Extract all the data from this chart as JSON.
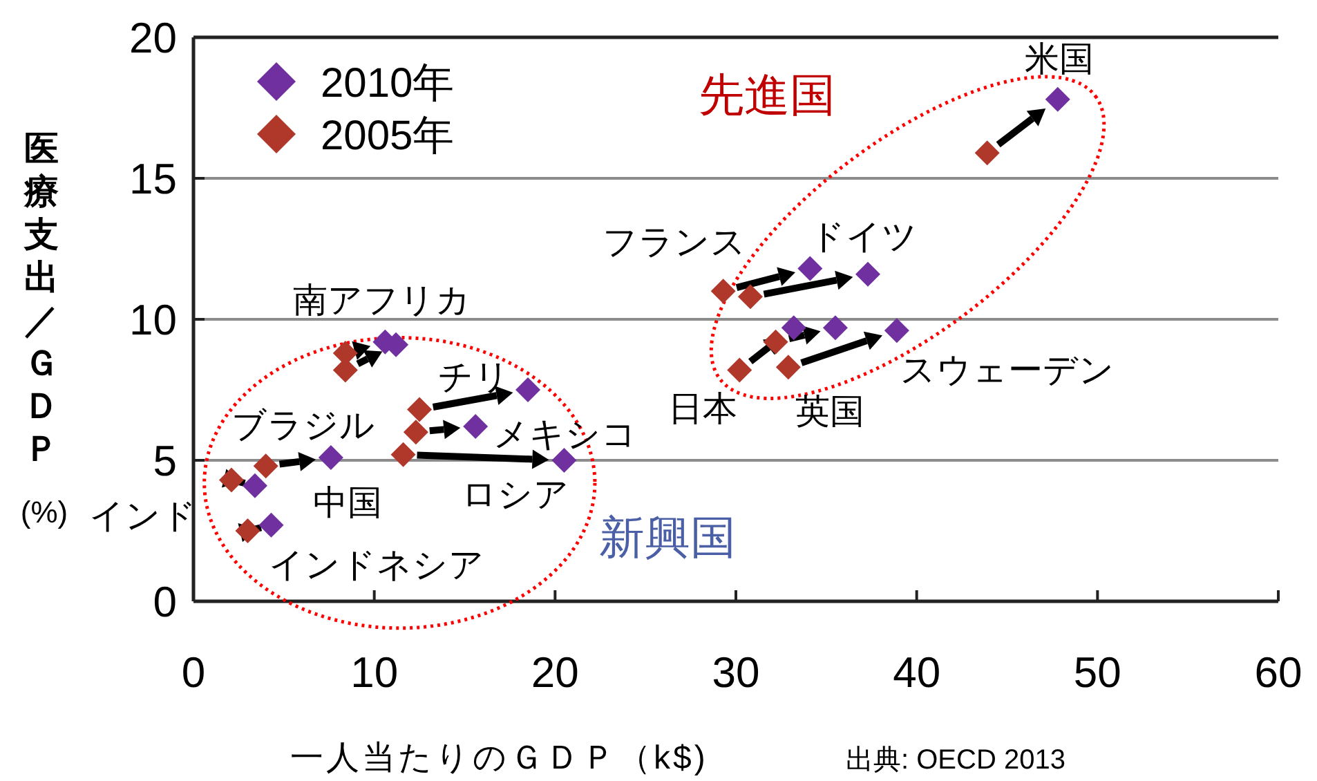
{
  "chart_data": {
    "type": "scatter",
    "xlabel": "一人当たりのＧＤＰ（k$)",
    "ylabel": "医療支出／ＧＤＰ (%)",
    "xlim": [
      0,
      60
    ],
    "xticks": [
      0,
      10,
      20,
      30,
      40,
      50,
      60
    ],
    "ylim": [
      0,
      20
    ],
    "yticks": [
      0,
      5,
      10,
      15,
      20
    ],
    "grid": "y",
    "legend": "top left",
    "marker": "diamond",
    "series": [
      {
        "name": "2010年",
        "color": "#7030a0",
        "x": [
          47.8,
          37.3,
          34.1,
          38.9,
          35.5,
          33.2,
          10.6,
          11.2,
          18.5,
          15.6,
          20.5,
          7.6,
          3.4,
          4.3
        ],
        "values": [
          17.8,
          11.6,
          11.8,
          9.6,
          9.7,
          9.7,
          9.2,
          9.1,
          7.5,
          6.2,
          5.0,
          5.1,
          4.1,
          2.7
        ]
      },
      {
        "name": "2005年",
        "color": "#b0382b",
        "x": [
          43.9,
          30.8,
          29.3,
          32.9,
          32.2,
          30.2,
          8.4,
          8.4,
          12.5,
          12.3,
          11.6,
          4.0,
          2.1,
          3.0
        ],
        "values": [
          15.9,
          10.8,
          11.0,
          8.3,
          9.2,
          8.2,
          8.8,
          8.2,
          6.8,
          6.0,
          5.2,
          4.8,
          4.3,
          2.5
        ]
      }
    ],
    "annotations": [
      "先進国",
      "新興国",
      {
        "text": "米国",
        "x": 47.8,
        "y": 17.8
      },
      {
        "text": "フランス",
        "x": 34.1,
        "y": 11.8
      },
      {
        "text": "ドイツ",
        "x": 37.3,
        "y": 11.6
      },
      {
        "text": "南アフリカ",
        "x": 10.6,
        "y": 9.2
      },
      {
        "text": "チリ",
        "x": 18.5,
        "y": 7.5
      },
      {
        "text": "ブラジル",
        "x": 7.6,
        "y": 5.1
      },
      {
        "text": "メキシコ",
        "x": 15.6,
        "y": 6.2
      },
      {
        "text": "スウェーデン",
        "x": 38.9,
        "y": 9.6
      },
      {
        "text": "日本",
        "x": 33.2,
        "y": 9.7
      },
      {
        "text": "英国",
        "x": 35.5,
        "y": 9.7
      },
      {
        "text": "中国",
        "x": 7.6,
        "y": 5.1
      },
      {
        "text": "ロシア",
        "x": 20.5,
        "y": 5.0
      },
      {
        "text": "インド",
        "x": 3.4,
        "y": 4.1
      },
      {
        "text": "インドネシア",
        "x": 4.3,
        "y": 2.7
      },
      "出典: OECD 2013"
    ]
  }
}
